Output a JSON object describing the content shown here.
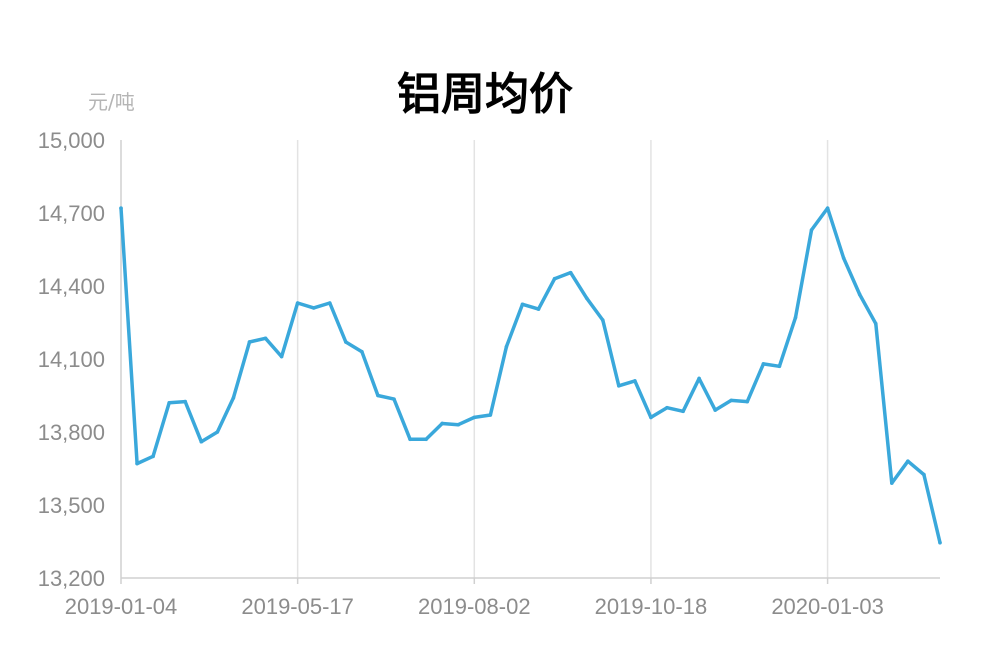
{
  "chart_data": {
    "type": "line",
    "title": "铝周均价",
    "ylabel": "元/吨",
    "xlabel": "",
    "ylim": [
      13200,
      15000
    ],
    "y_ticks": [
      "15,000",
      "14,700",
      "14,400",
      "14,100",
      "13,800",
      "13,500",
      "13,200"
    ],
    "y_tick_values": [
      15000,
      14700,
      14400,
      14100,
      13800,
      13500,
      13200
    ],
    "x_tick_labels": [
      "2019-01-04",
      "2019-05-17",
      "2019-08-02",
      "2019-10-18",
      "2020-01-03"
    ],
    "x_tick_index": [
      0,
      11,
      22,
      33,
      44
    ],
    "grid": "vertical",
    "series": [
      {
        "color": "#3aa8db",
        "values": [
          14720,
          13670,
          13700,
          13920,
          13925,
          13760,
          13800,
          13940,
          14170,
          14185,
          14110,
          14330,
          14310,
          14330,
          14170,
          14130,
          13950,
          13935,
          13770,
          13770,
          13835,
          13830,
          13860,
          13870,
          14150,
          14325,
          14305,
          14430,
          14455,
          14350,
          14260,
          13990,
          14010,
          13860,
          13900,
          13885,
          14020,
          13890,
          13930,
          13925,
          14080,
          14070,
          14270,
          14630,
          14720,
          14515,
          14365,
          14245,
          13590,
          13680,
          13625,
          13345
        ]
      }
    ]
  }
}
